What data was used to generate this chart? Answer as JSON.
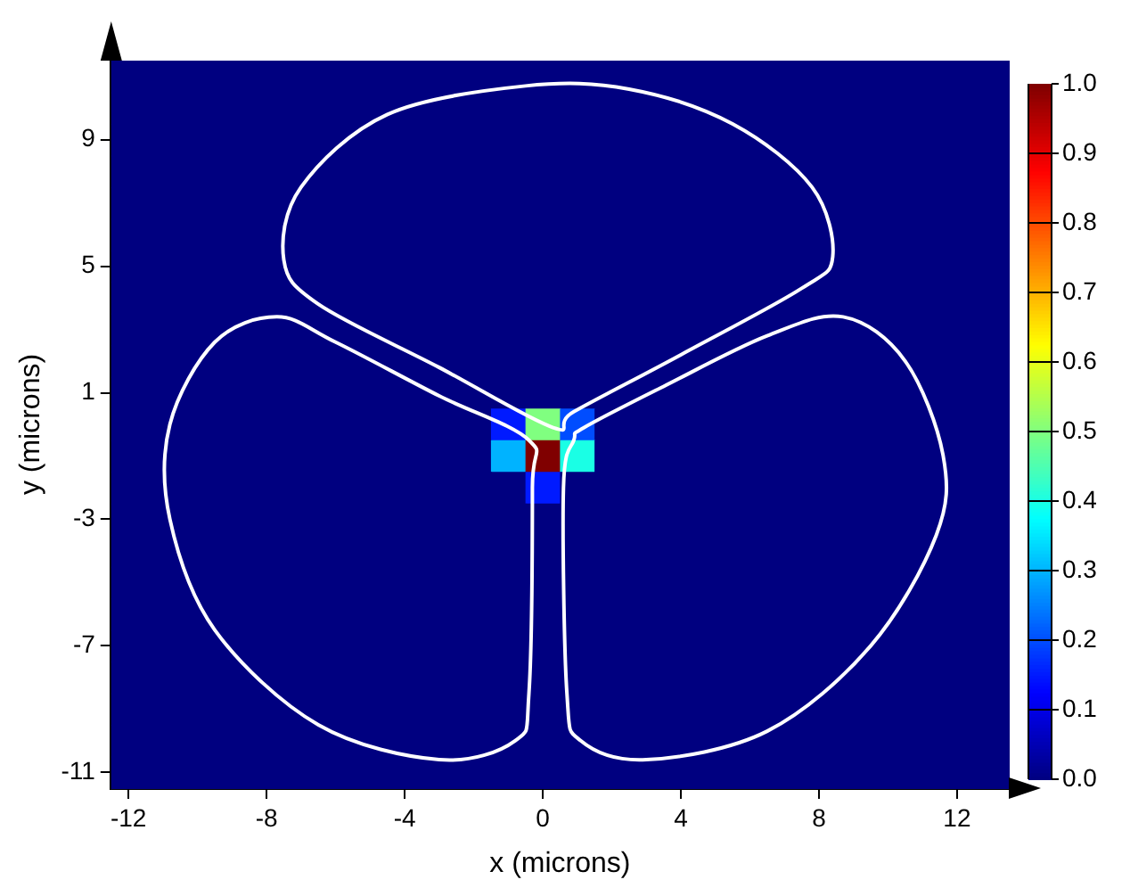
{
  "chart_data": {
    "type": "heatmap",
    "xlabel": "x (microns)",
    "ylabel": "y (microns)",
    "xlim": [
      -12.5,
      13.5
    ],
    "xticks": [
      -12,
      -8,
      -4,
      0,
      4,
      8,
      12
    ],
    "ylim": [
      -11.5,
      11.5
    ],
    "yticks": [
      -11,
      -7,
      -3,
      1,
      5,
      9
    ],
    "clim": [
      0,
      1
    ],
    "cticks": [
      {
        "value": 0,
        "label": "0.0"
      },
      0.1,
      0.2,
      0.3,
      0.4,
      0.5,
      0.6,
      0.7,
      0.8,
      0.9,
      {
        "value": 1,
        "label": "1.0"
      }
    ],
    "cells": [
      [
        0,
        0,
        0,
        0,
        0,
        0,
        0,
        0,
        0,
        0,
        0,
        0,
        0,
        0,
        0,
        0,
        0,
        0,
        0,
        0,
        0,
        0,
        0,
        0,
        0,
        0
      ],
      [
        0,
        0,
        0,
        0,
        0,
        0,
        0,
        0,
        0,
        0,
        0,
        0,
        0,
        0,
        0,
        0,
        0,
        0,
        0,
        0,
        0,
        0,
        0,
        0,
        0,
        0
      ],
      [
        0,
        0,
        0,
        0,
        0,
        0,
        0,
        0,
        0,
        0,
        0,
        0,
        0,
        0,
        0,
        0,
        0,
        0,
        0,
        0,
        0,
        0,
        0,
        0,
        0,
        0
      ],
      [
        0,
        0,
        0,
        0,
        0,
        0,
        0,
        0,
        0,
        0,
        0,
        0,
        0,
        0,
        0,
        0,
        0,
        0,
        0,
        0,
        0,
        0,
        0,
        0,
        0,
        0
      ],
      [
        0,
        0,
        0,
        0,
        0,
        0,
        0,
        0,
        0,
        0,
        0,
        0,
        0,
        0,
        0,
        0,
        0,
        0,
        0,
        0,
        0,
        0,
        0,
        0,
        0,
        0
      ],
      [
        0,
        0,
        0,
        0,
        0,
        0,
        0,
        0,
        0,
        0,
        0,
        0,
        0,
        0,
        0,
        0,
        0,
        0,
        0,
        0,
        0,
        0,
        0,
        0,
        0,
        0
      ],
      [
        0,
        0,
        0,
        0,
        0,
        0,
        0,
        0,
        0,
        0,
        0,
        0,
        0,
        0,
        0,
        0,
        0,
        0,
        0,
        0,
        0,
        0,
        0,
        0,
        0,
        0
      ],
      [
        0,
        0,
        0,
        0,
        0,
        0,
        0,
        0,
        0,
        0,
        0,
        0,
        0,
        0,
        0,
        0,
        0,
        0,
        0,
        0,
        0,
        0,
        0,
        0,
        0,
        0
      ],
      [
        0,
        0,
        0,
        0,
        0,
        0,
        0,
        0,
        0,
        0,
        0,
        0,
        0,
        0,
        0,
        0,
        0,
        0,
        0,
        0,
        0,
        0,
        0,
        0,
        0,
        0
      ],
      [
        0,
        0,
        0,
        0,
        0,
        0,
        0,
        0,
        0,
        0,
        0,
        0,
        0,
        0,
        0,
        0,
        0,
        0,
        0,
        0,
        0,
        0,
        0,
        0,
        0,
        0
      ],
      [
        0,
        0,
        0,
        0,
        0,
        0,
        0,
        0,
        0,
        0,
        0,
        0,
        0,
        0,
        0,
        0,
        0,
        0,
        0,
        0,
        0,
        0,
        0,
        0,
        0,
        0
      ],
      [
        0,
        0,
        0,
        0,
        0,
        0,
        0,
        0,
        0,
        0,
        0,
        0.15,
        0.5,
        0.2,
        0,
        0,
        0,
        0,
        0,
        0,
        0,
        0,
        0,
        0,
        0,
        0
      ],
      [
        0,
        0,
        0,
        0,
        0,
        0,
        0,
        0,
        0,
        0,
        0,
        0.3,
        1,
        0.4,
        0,
        0,
        0,
        0,
        0,
        0,
        0,
        0,
        0,
        0,
        0,
        0
      ],
      [
        0,
        0,
        0,
        0,
        0,
        0,
        0,
        0,
        0,
        0,
        0,
        0,
        0.15,
        0,
        0,
        0,
        0,
        0,
        0,
        0,
        0,
        0,
        0,
        0,
        0,
        0
      ],
      [
        0,
        0,
        0,
        0,
        0,
        0,
        0,
        0,
        0,
        0,
        0,
        0,
        0,
        0,
        0,
        0,
        0,
        0,
        0,
        0,
        0,
        0,
        0,
        0,
        0,
        0
      ],
      [
        0,
        0,
        0,
        0,
        0,
        0,
        0,
        0,
        0,
        0,
        0,
        0,
        0,
        0,
        0,
        0,
        0,
        0,
        0,
        0,
        0,
        0,
        0,
        0,
        0,
        0
      ],
      [
        0,
        0,
        0,
        0,
        0,
        0,
        0,
        0,
        0,
        0,
        0,
        0,
        0,
        0,
        0,
        0,
        0,
        0,
        0,
        0,
        0,
        0,
        0,
        0,
        0,
        0
      ],
      [
        0,
        0,
        0,
        0,
        0,
        0,
        0,
        0,
        0,
        0,
        0,
        0,
        0,
        0,
        0,
        0,
        0,
        0,
        0,
        0,
        0,
        0,
        0,
        0,
        0,
        0
      ],
      [
        0,
        0,
        0,
        0,
        0,
        0,
        0,
        0,
        0,
        0,
        0,
        0,
        0,
        0,
        0,
        0,
        0,
        0,
        0,
        0,
        0,
        0,
        0,
        0,
        0,
        0
      ],
      [
        0,
        0,
        0,
        0,
        0,
        0,
        0,
        0,
        0,
        0,
        0,
        0,
        0,
        0,
        0,
        0,
        0,
        0,
        0,
        0,
        0,
        0,
        0,
        0,
        0,
        0
      ],
      [
        0,
        0,
        0,
        0,
        0,
        0,
        0,
        0,
        0,
        0,
        0,
        0,
        0,
        0,
        0,
        0,
        0,
        0,
        0,
        0,
        0,
        0,
        0,
        0,
        0,
        0
      ],
      [
        0,
        0,
        0,
        0,
        0,
        0,
        0,
        0,
        0,
        0,
        0,
        0,
        0,
        0,
        0,
        0,
        0,
        0,
        0,
        0,
        0,
        0,
        0,
        0,
        0,
        0
      ],
      [
        0,
        0,
        0,
        0,
        0,
        0,
        0,
        0,
        0,
        0,
        0,
        0,
        0,
        0,
        0,
        0,
        0,
        0,
        0,
        0,
        0,
        0,
        0,
        0,
        0,
        0
      ]
    ]
  }
}
